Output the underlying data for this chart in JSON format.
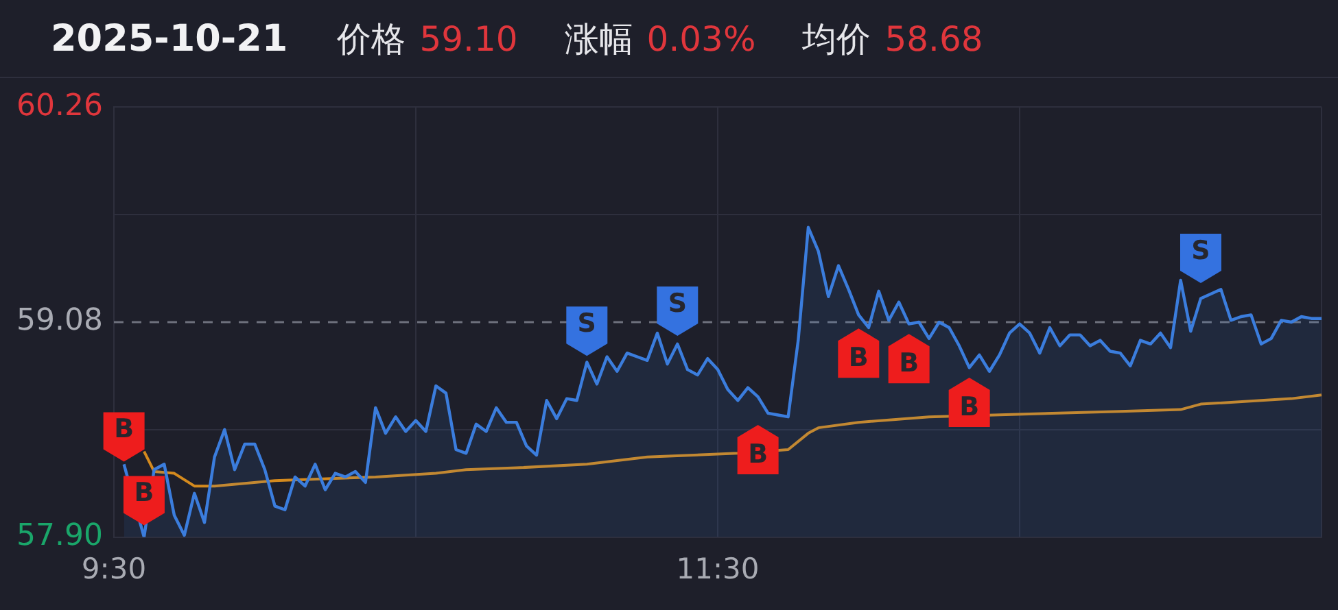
{
  "chart_data": {
    "type": "area",
    "title": "2025-10-21",
    "annotations": [
      "价格",
      "59.10",
      "涨幅",
      "0.03%",
      "均价",
      "58.68"
    ],
    "categories": [
      "9:30",
      null,
      null,
      null,
      null,
      null,
      null,
      null,
      null,
      null,
      null,
      null,
      null,
      null,
      null,
      null,
      null,
      null,
      null,
      null,
      null,
      null,
      null,
      null,
      null,
      null,
      null,
      null,
      null,
      null,
      null,
      null,
      null,
      null,
      null,
      null,
      null,
      null,
      null,
      null,
      null,
      null,
      null,
      null,
      null,
      null,
      null,
      null,
      null,
      null,
      null,
      null,
      null,
      null,
      null,
      null,
      null,
      null,
      null,
      null,
      "11:30",
      null,
      null,
      null,
      null,
      null,
      null,
      null,
      null,
      null,
      null,
      null,
      null,
      null,
      null,
      null,
      null,
      null,
      null,
      null,
      null,
      null,
      null,
      null,
      null,
      null,
      null,
      null,
      null,
      null,
      null,
      null,
      null,
      null,
      null,
      null,
      null,
      null,
      null,
      null,
      null,
      null,
      null,
      null,
      null,
      null,
      null,
      null,
      null,
      null,
      null,
      null,
      null,
      null,
      null,
      null,
      null,
      null,
      null,
      null,
      null
    ],
    "ylim": [
      57.9,
      60.26
    ],
    "yticks": [
      {
        "value": 57.9,
        "label": "57.90"
      },
      {
        "value": 58.49,
        "label": null
      },
      59.08,
      {
        "value": 59.67,
        "label": null
      },
      60.26
    ],
    "grid": true,
    "legend": false,
    "ref_lines": [
      {
        "axis": "y",
        "value": 59.08,
        "line_style": "dashed",
        "color": "#6e717d"
      }
    ],
    "series": [
      {
        "color": "#3b7ddd",
        "values": [
          null,
          58.3,
          null,
          57.9,
          58.27,
          58.3,
          58.02,
          57.91,
          58.14,
          57.98,
          58.34,
          58.49,
          58.27,
          58.41,
          58.41,
          58.27,
          58.07,
          58.05,
          58.23,
          58.18,
          58.3,
          58.16,
          58.25,
          58.23,
          58.26,
          58.2,
          58.61,
          58.47,
          58.56,
          58.48,
          58.54,
          58.48,
          58.73,
          58.69,
          58.38,
          58.36,
          58.52,
          58.48,
          58.61,
          58.53,
          58.53,
          58.4,
          58.35,
          58.65,
          58.55,
          58.66,
          58.65,
          58.86,
          58.74,
          58.89,
          58.81,
          58.91,
          58.89,
          58.87,
          59.02,
          58.85,
          58.96,
          58.82,
          58.79,
          58.88,
          58.82,
          58.71,
          58.65,
          58.72,
          58.67,
          58.58,
          58.57,
          58.56,
          58.98,
          59.6,
          59.47,
          59.22,
          59.39,
          59.26,
          59.12,
          59.05,
          59.25,
          59.09,
          59.19,
          59.07,
          59.08,
          58.99,
          59.08,
          59.05,
          58.95,
          58.83,
          58.9,
          58.81,
          58.9,
          59.02,
          59.07,
          59.02,
          58.91,
          59.05,
          58.95,
          59.01,
          59.01,
          58.95,
          58.98,
          58.92,
          58.91,
          58.84,
          58.98,
          58.96,
          59.02,
          58.94,
          59.31,
          59.03,
          59.21,
          null,
          59.26,
          59.09,
          59.11,
          59.12,
          58.96,
          58.99,
          59.09,
          59.08,
          59.11,
          59.1,
          59.1
        ]
      },
      {
        "type": "line",
        "color": "#d48a1e",
        "values": [
          null,
          null,
          null,
          58.37,
          58.26,
          null,
          58.25,
          null,
          58.18,
          null,
          58.18,
          null,
          null,
          null,
          null,
          null,
          58.21,
          null,
          null,
          null,
          null,
          null,
          null,
          null,
          null,
          null,
          58.23,
          null,
          null,
          null,
          null,
          null,
          58.25,
          null,
          null,
          58.27,
          null,
          null,
          null,
          null,
          58.28,
          null,
          null,
          null,
          null,
          null,
          null,
          58.3,
          null,
          null,
          null,
          null,
          null,
          58.34,
          null,
          null,
          null,
          null,
          null,
          null,
          null,
          null,
          58.36,
          null,
          null,
          null,
          null,
          58.38,
          null,
          58.47,
          58.5,
          null,
          null,
          null,
          58.53,
          null,
          null,
          null,
          null,
          null,
          null,
          58.56,
          null,
          null,
          null,
          null,
          null,
          null,
          null,
          null,
          null,
          null,
          null,
          null,
          null,
          null,
          null,
          null,
          null,
          null,
          58.59,
          null,
          null,
          null,
          null,
          null,
          58.6,
          null,
          58.63,
          null,
          null,
          null,
          null,
          null,
          null,
          null,
          null,
          58.66,
          null,
          null,
          58.68
        ]
      },
      {
        "name": "B",
        "type": "scatter",
        "color": "#ee1d1d",
        "values": [
          null,
          58.45,
          null,
          58.1,
          null,
          null,
          null,
          null,
          null,
          null,
          null,
          null,
          null,
          null,
          null,
          null,
          null,
          null,
          null,
          null,
          null,
          null,
          null,
          null,
          null,
          null,
          null,
          null,
          null,
          null,
          null,
          null,
          null,
          null,
          null,
          null,
          null,
          null,
          null,
          null,
          null,
          null,
          null,
          null,
          null,
          null,
          null,
          null,
          null,
          null,
          null,
          null,
          null,
          null,
          null,
          null,
          null,
          null,
          null,
          null,
          null,
          null,
          null,
          null,
          58.38,
          null,
          null,
          null,
          null,
          null,
          null,
          null,
          null,
          null,
          58.91,
          null,
          null,
          null,
          null,
          58.88,
          null,
          null,
          null,
          null,
          null,
          58.64,
          null,
          null,
          null,
          null,
          null,
          null,
          null,
          null,
          null,
          null,
          null,
          null,
          null,
          null,
          null,
          null,
          null,
          null,
          null,
          null,
          null,
          null,
          null,
          null,
          null,
          null,
          null,
          null,
          null,
          null,
          null,
          null,
          null,
          null,
          null
        ]
      },
      {
        "name": "S",
        "type": "scatter",
        "color": "#3472e0",
        "values": [
          null,
          null,
          null,
          null,
          null,
          null,
          null,
          null,
          null,
          null,
          null,
          null,
          null,
          null,
          null,
          null,
          null,
          null,
          null,
          null,
          null,
          null,
          null,
          null,
          null,
          null,
          null,
          null,
          null,
          null,
          null,
          null,
          null,
          null,
          null,
          null,
          null,
          null,
          null,
          null,
          null,
          null,
          null,
          null,
          null,
          null,
          null,
          59.03,
          null,
          null,
          null,
          null,
          null,
          null,
          null,
          null,
          59.14,
          null,
          null,
          null,
          null,
          null,
          null,
          null,
          null,
          null,
          null,
          null,
          null,
          null,
          null,
          null,
          null,
          null,
          null,
          null,
          null,
          null,
          null,
          null,
          null,
          null,
          null,
          null,
          null,
          null,
          null,
          null,
          null,
          null,
          null,
          null,
          null,
          null,
          null,
          null,
          null,
          null,
          null,
          null,
          null,
          null,
          null,
          null,
          null,
          null,
          null,
          null,
          59.43,
          null,
          null,
          null,
          null,
          null,
          null,
          null,
          null,
          null,
          null,
          null,
          null
        ]
      }
    ]
  }
}
